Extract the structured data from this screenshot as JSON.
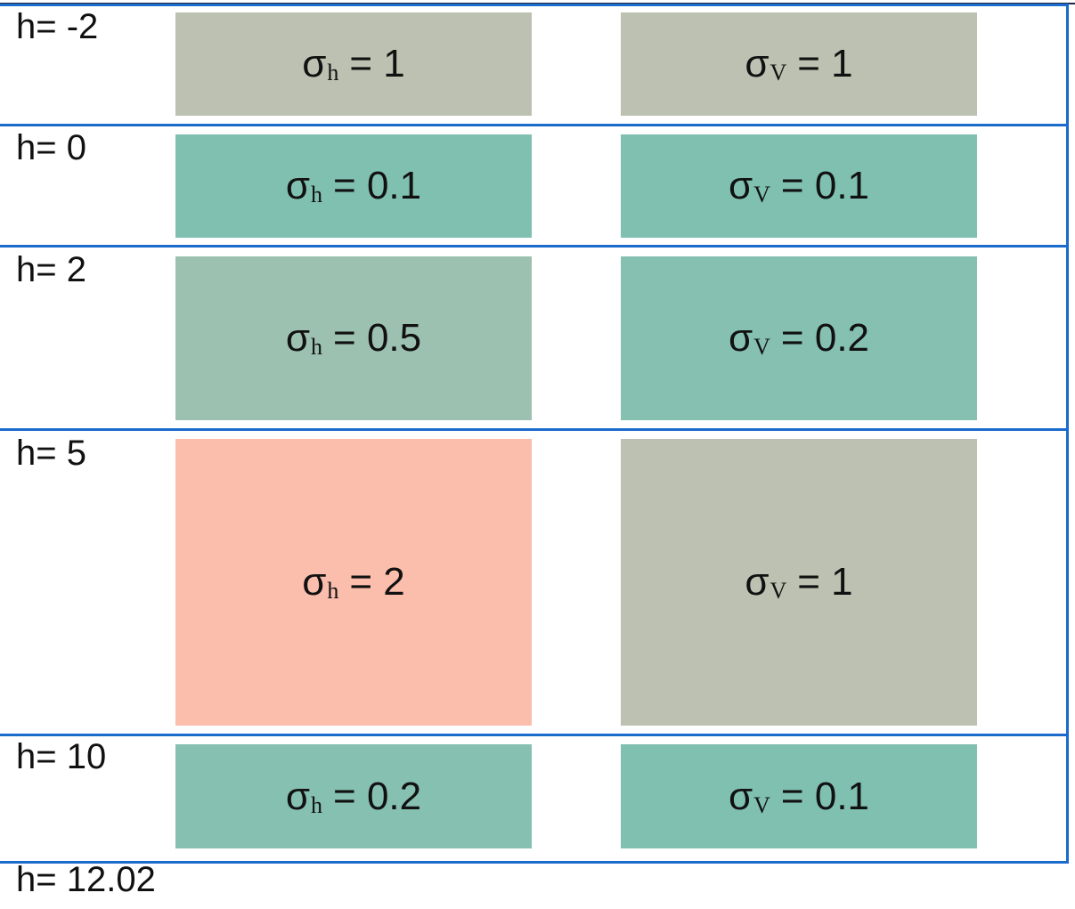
{
  "layers": [
    {
      "h_label": "h= -2",
      "h": {
        "symbol": "σ",
        "sub": "h",
        "text": " = 1",
        "color": "#bdc1b1"
      },
      "v": {
        "symbol": "σ",
        "sub": "V",
        "text": " = 1",
        "color": "#bdc1b1"
      }
    },
    {
      "h_label": "h= 0",
      "h": {
        "symbol": "σ",
        "sub": "h",
        "text": " = 0.1",
        "color": "#7fc0b0"
      },
      "v": {
        "symbol": "σ",
        "sub": "V",
        "text": " = 0.1",
        "color": "#7fc0b0"
      }
    },
    {
      "h_label": "h= 2",
      "h": {
        "symbol": "σ",
        "sub": "h",
        "text": " = 0.5",
        "color": "#9dc1b0"
      },
      "v": {
        "symbol": "σ",
        "sub": "V",
        "text": " = 0.2",
        "color": "#85c0b0"
      }
    },
    {
      "h_label": "h= 5",
      "h": {
        "symbol": "σ",
        "sub": "h",
        "text": " = 2",
        "color": "#fbbdac"
      },
      "v": {
        "symbol": "σ",
        "sub": "V",
        "text": " = 1",
        "color": "#bdc1b1"
      }
    },
    {
      "h_label": "h= 10",
      "h": {
        "symbol": "σ",
        "sub": "h",
        "text": " = 0.2",
        "color": "#85c0b0"
      },
      "v": {
        "symbol": "σ",
        "sub": "V",
        "text": " = 0.1",
        "color": "#7fc0b0"
      }
    }
  ],
  "bottom_label": "h= 12.02",
  "frame_color": "#1a6bcc"
}
